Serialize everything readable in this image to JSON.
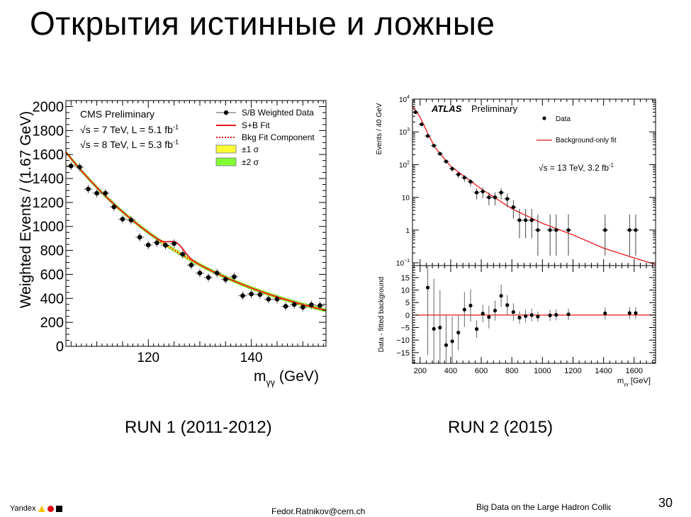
{
  "slide": {
    "title": "Открытия истинные и ложные",
    "run1_label": "RUN 1 (2011-2012)",
    "run2_label": "RUN 2 (2015)",
    "footer": {
      "brand": "Yandex",
      "email": "Fedor.Ratnikov@cern.ch",
      "course": "Big Data on the Large Hadron Collider",
      "page": "30"
    }
  },
  "colors": {
    "fit": "#e8141a",
    "band1": "#ffff33",
    "band2": "#80ff33",
    "data": "#000000"
  },
  "chart_data": [
    {
      "type": "scatter",
      "title": "CMS Preliminary",
      "annotations": [
        {
          "text": "√s = 7 TeV, L = 5.1 fb",
          "sup": "-1"
        },
        {
          "text": "√s = 8 TeV, L = 5.3 fb",
          "sup": "-1"
        }
      ],
      "xlabel": {
        "main": "m",
        "sub": "γγ",
        "unit": " (GeV)"
      },
      "ylabel": "Weighted Events / (1.67 GeV)",
      "xlim": [
        104,
        154.5
      ],
      "ylim": [
        0,
        2050
      ],
      "xticks": [
        120,
        140
      ],
      "yticks": [
        0,
        200,
        400,
        600,
        800,
        1000,
        1200,
        1400,
        1600,
        1800,
        2000
      ],
      "legend": {
        "position": "top-right",
        "entries": [
          "S/B Weighted Data",
          "S+B Fit",
          "Bkg Fit Component",
          "±1 σ",
          "±2 σ"
        ]
      },
      "x": [
        105,
        106.67,
        108.33,
        110,
        111.67,
        113.33,
        115,
        116.67,
        118.33,
        120,
        121.67,
        123.33,
        125,
        126.67,
        128.33,
        130,
        131.67,
        133.33,
        135,
        136.67,
        138.33,
        140,
        141.67,
        143.33,
        145,
        146.67,
        148.33,
        150,
        151.67,
        153.33
      ],
      "y": [
        1505,
        1495,
        1312,
        1277,
        1277,
        1163,
        1061,
        1053,
        910,
        845,
        864,
        843,
        857,
        768,
        678,
        611,
        574,
        611,
        558,
        580,
        422,
        436,
        432,
        393,
        393,
        334,
        348,
        326,
        346,
        340
      ],
      "yerr": 35,
      "bkg_fit": {
        "model": "exponential",
        "norm": 1620,
        "x0": 104,
        "slope": 0.0334,
        "band1": 8,
        "band2": 16
      },
      "signal": {
        "mass": 125.5,
        "amplitude": 75,
        "sigma": 1.4
      }
    },
    {
      "type": "scatter",
      "title": "ATLAS",
      "subtitle": "Preliminary",
      "annotation": {
        "text": "√s = 13 TeV, 3.2 fb",
        "sup": "-1"
      },
      "xlabel": {
        "main": "m",
        "sub": "γγ",
        "unit": " [GeV]"
      },
      "ylabel_top": "Events / 40 GeV",
      "ylabel_bottom": "Data - fitted background",
      "xlim": [
        150,
        1740
      ],
      "ylim_top": [
        0.082,
        10000
      ],
      "ylim_bottom": [
        -19.3,
        19.8
      ],
      "xticks": [
        200,
        400,
        600,
        800,
        1000,
        1200,
        1400,
        1600
      ],
      "yticks_top": [
        {
          "base": "10",
          "exp": "4"
        },
        {
          "base": "10",
          "exp": "3"
        },
        {
          "base": "10",
          "exp": "2"
        },
        {
          "base": "10",
          "exp": ""
        },
        {
          "base": "1",
          "exp": ""
        },
        {
          "base": "10",
          "exp": "−1"
        }
      ],
      "yticks_top_values": [
        10000,
        1000,
        100,
        10,
        1,
        0.1
      ],
      "yticks_bottom": [
        15,
        10,
        5,
        0,
        -5,
        -10,
        -15
      ],
      "yticks_bottom_labels": [
        "15",
        "10",
        "5",
        "0",
        "−5",
        "−10",
        "−15"
      ],
      "legend": {
        "position": "top-right",
        "entries": [
          "Data",
          "Background-only fit"
        ]
      },
      "x": [
        170,
        210,
        250,
        290,
        330,
        370,
        410,
        450,
        490,
        530,
        570,
        610,
        650,
        690,
        730,
        770,
        810,
        850,
        890,
        930,
        970,
        1050,
        1090,
        1170,
        1410,
        1570,
        1610
      ],
      "y": [
        4000,
        1700,
        750,
        380,
        215,
        125,
        75,
        50,
        40,
        30,
        14,
        15,
        10,
        10,
        14,
        9,
        5,
        2,
        2,
        2,
        1,
        1,
        1,
        1,
        1,
        1,
        1
      ],
      "residual_x": [
        250,
        290,
        330,
        370,
        410,
        450,
        490,
        530,
        570,
        610,
        650,
        690,
        730,
        770,
        810,
        850,
        890,
        930,
        970,
        1050,
        1090,
        1170,
        1410,
        1570,
        1610
      ],
      "residual": [
        11,
        -5.5,
        -5,
        -12,
        -10.5,
        -7,
        2.2,
        3.8,
        -5.6,
        0.6,
        -0.8,
        1.8,
        7.7,
        4,
        1.2,
        -1,
        -0.4,
        0,
        -0.6,
        -0.1,
        0.1,
        0.3,
        0.7,
        0.8,
        0.8
      ],
      "residual_err": [
        27,
        20,
        15,
        12,
        10,
        7,
        7,
        6.5,
        3.5,
        3.5,
        4.5,
        4,
        4.5,
        4,
        3.5,
        2.5,
        2.5,
        2.5,
        2,
        2.2,
        2.2,
        2.3,
        2.4,
        2.4,
        2.4
      ],
      "fit": {
        "x": [
          150,
          200,
          250,
          300,
          400,
          500,
          600,
          800,
          1000,
          1200,
          1400,
          1600,
          1740
        ],
        "y": [
          6300,
          2800,
          900,
          320,
          89,
          40,
          18,
          4.5,
          1.6,
          0.71,
          0.28,
          0.14,
          0.089
        ]
      }
    }
  ]
}
